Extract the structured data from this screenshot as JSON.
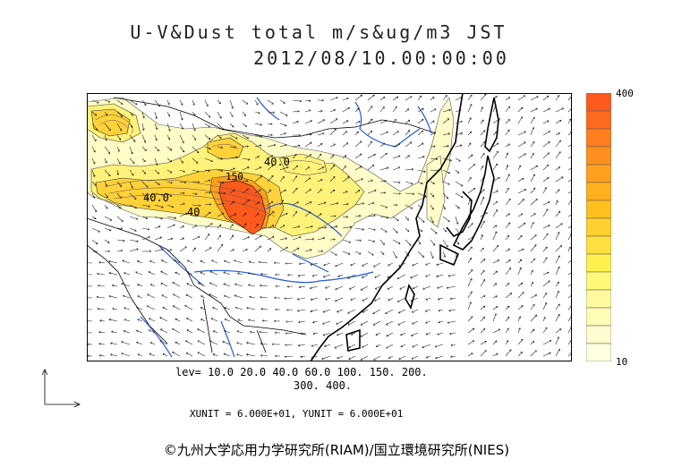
{
  "title": {
    "line1": "U-V&Dust total m/s&ug/m3 JST",
    "line2": "2012/08/10.00:00:00"
  },
  "map": {
    "labels": [
      {
        "text": "40.0"
      },
      {
        "text": "150"
      },
      {
        "text": "40.0"
      },
      {
        "text": "40"
      }
    ]
  },
  "colorbar": {
    "max_label": "400",
    "min_label": "10",
    "colors": [
      "#ff5a1e",
      "#ff6a1e",
      "#ff7e20",
      "#ff9020",
      "#ffa020",
      "#ffb020",
      "#ffc020",
      "#ffd030",
      "#ffe040",
      "#fff050",
      "#fff878",
      "#fffaa0",
      "#fffcb8",
      "#fffdd0",
      "#fffee0"
    ]
  },
  "footer": {
    "levels_line1": "lev= 10.0 20.0 40.0 60.0 100. 150. 200.",
    "levels_line2": "300. 400.",
    "units": "XUNIT = 6.000E+01, YUNIT = 6.000E+01",
    "copyright": "©九州大学応用力学研究所(RIAM)/国立環境研究所(NIES)"
  }
}
